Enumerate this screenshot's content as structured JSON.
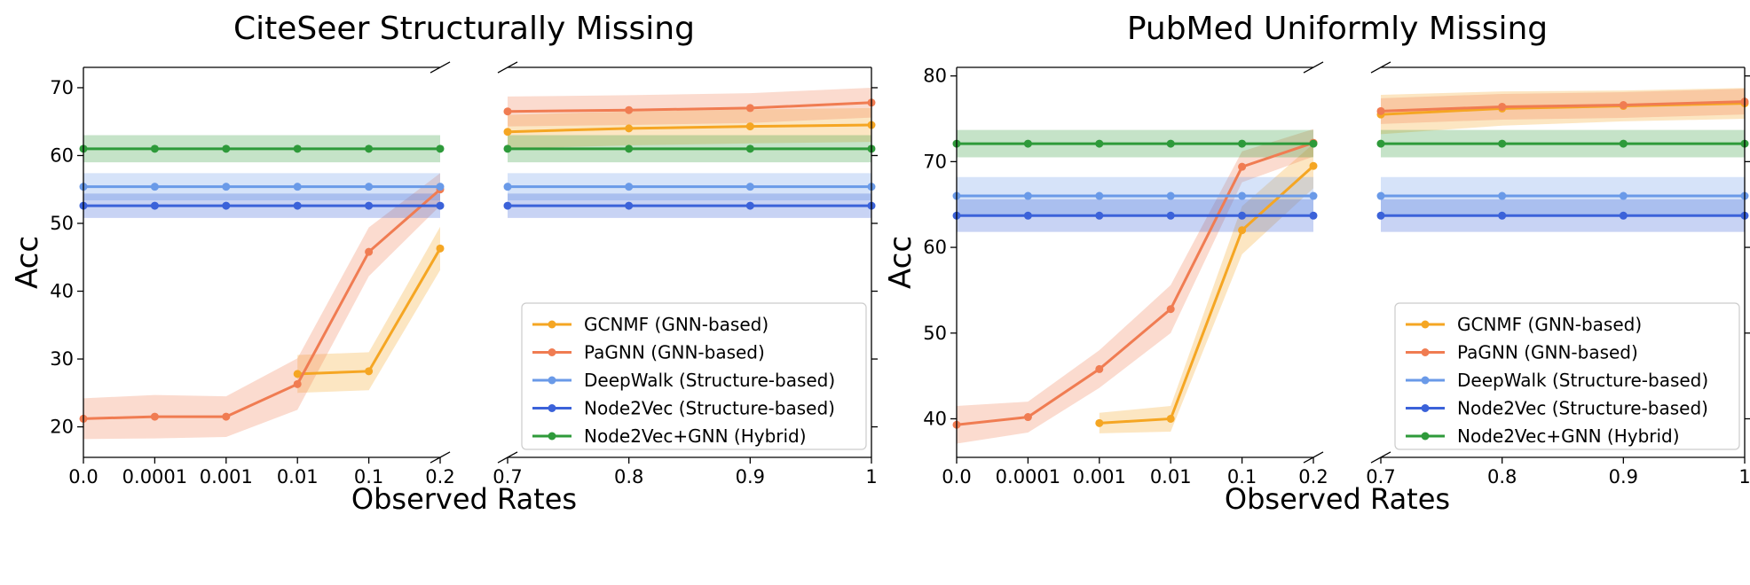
{
  "chart_data": [
    {
      "type": "line",
      "title": "CiteSeer Structurally Missing",
      "xlabel": "Observed Rates",
      "ylabel": "Acc",
      "ylim": [
        15.5,
        73
      ],
      "yticks": [
        20,
        30,
        40,
        50,
        60,
        70
      ],
      "x_left": [
        "0.0",
        "0.0001",
        "0.001",
        "0.01",
        "0.1",
        "0.2"
      ],
      "x_right": [
        "0.7",
        "0.8",
        "0.9",
        "1"
      ],
      "legend_position": "lower-right",
      "series": [
        {
          "name": "GCNMF (GNN-based)",
          "color": "#f5a623",
          "left": [
            null,
            null,
            null,
            27.8,
            28.2,
            46.3
          ],
          "left_err": [
            null,
            null,
            null,
            2.8,
            2.8,
            3.2
          ],
          "right": [
            63.5,
            64.0,
            64.3,
            64.5
          ],
          "right_err": [
            2.5,
            2.5,
            2.5,
            2.5
          ]
        },
        {
          "name": "PaGNN (GNN-based)",
          "color": "#f07c52",
          "left": [
            21.2,
            21.5,
            21.5,
            26.3,
            45.8,
            55.0
          ],
          "left_err": [
            3.0,
            3.2,
            3.0,
            3.8,
            3.6,
            2.4
          ],
          "right": [
            66.5,
            66.7,
            67.0,
            67.8
          ],
          "right_err": [
            2.2,
            2.2,
            2.2,
            2.2
          ]
        },
        {
          "name": "DeepWalk (Structure-based)",
          "color": "#6a9ae8",
          "left": [
            55.4,
            55.4,
            55.4,
            55.4,
            55.4,
            55.4
          ],
          "left_err": [
            2.0,
            2.0,
            2.0,
            2.0,
            2.0,
            2.0
          ],
          "right": [
            55.4,
            55.4,
            55.4,
            55.4
          ],
          "right_err": [
            2.0,
            2.0,
            2.0,
            2.0
          ]
        },
        {
          "name": "Node2Vec (Structure-based)",
          "color": "#3b62d9",
          "left": [
            52.6,
            52.6,
            52.6,
            52.6,
            52.6,
            52.6
          ],
          "left_err": [
            1.8,
            1.8,
            1.8,
            1.8,
            1.8,
            1.8
          ],
          "right": [
            52.6,
            52.6,
            52.6,
            52.6
          ],
          "right_err": [
            1.8,
            1.8,
            1.8,
            1.8
          ]
        },
        {
          "name": "Node2Vec+GNN (Hybrid)",
          "color": "#2e9a3a",
          "left": [
            61.0,
            61.0,
            61.0,
            61.0,
            61.0,
            61.0
          ],
          "left_err": [
            2.0,
            2.0,
            2.0,
            2.0,
            2.0,
            2.0
          ],
          "right": [
            61.0,
            61.0,
            61.0,
            61.0
          ],
          "right_err": [
            2.0,
            2.0,
            2.0,
            2.0
          ]
        }
      ]
    },
    {
      "type": "line",
      "title": "PubMed Uniformly Missing",
      "xlabel": "Observed Rates",
      "ylabel": "Acc",
      "ylim": [
        35.5,
        81
      ],
      "yticks": [
        40,
        50,
        60,
        70,
        80
      ],
      "x_left": [
        "0.0",
        "0.0001",
        "0.001",
        "0.01",
        "0.1",
        "0.2"
      ],
      "x_right": [
        "0.7",
        "0.8",
        "0.9",
        "1"
      ],
      "legend_position": "lower-right",
      "series": [
        {
          "name": "GCNMF (GNN-based)",
          "color": "#f5a623",
          "left": [
            null,
            null,
            39.5,
            40.0,
            62.0,
            69.5
          ],
          "left_err": [
            null,
            null,
            1.2,
            1.5,
            2.8,
            2.6
          ],
          "right": [
            75.5,
            76.2,
            76.5,
            76.8
          ],
          "right_err": [
            2.3,
            2.0,
            1.8,
            1.8
          ]
        },
        {
          "name": "PaGNN (GNN-based)",
          "color": "#f07c52",
          "left": [
            39.3,
            40.2,
            45.8,
            52.8,
            69.4,
            72.2
          ],
          "left_err": [
            2.2,
            1.8,
            2.2,
            2.8,
            1.8,
            1.6
          ],
          "right": [
            75.9,
            76.4,
            76.6,
            77.0
          ],
          "right_err": [
            1.5,
            1.5,
            1.5,
            1.5
          ]
        },
        {
          "name": "DeepWalk (Structure-based)",
          "color": "#6a9ae8",
          "left": [
            66.0,
            66.0,
            66.0,
            66.0,
            66.0,
            66.0
          ],
          "left_err": [
            2.2,
            2.2,
            2.2,
            2.2,
            2.2,
            2.2
          ],
          "right": [
            66.0,
            66.0,
            66.0,
            66.0
          ],
          "right_err": [
            2.2,
            2.2,
            2.2,
            2.2
          ]
        },
        {
          "name": "Node2Vec (Structure-based)",
          "color": "#3b62d9",
          "left": [
            63.7,
            63.7,
            63.7,
            63.7,
            63.7,
            63.7
          ],
          "left_err": [
            1.9,
            1.9,
            1.9,
            1.9,
            1.9,
            1.9
          ],
          "right": [
            63.7,
            63.7,
            63.7,
            63.7
          ],
          "right_err": [
            1.9,
            1.9,
            1.9,
            1.9
          ]
        },
        {
          "name": "Node2Vec+GNN (Hybrid)",
          "color": "#2e9a3a",
          "left": [
            72.1,
            72.1,
            72.1,
            72.1,
            72.1,
            72.1
          ],
          "left_err": [
            1.6,
            1.6,
            1.6,
            1.6,
            1.6,
            1.6
          ],
          "right": [
            72.1,
            72.1,
            72.1,
            72.1
          ],
          "right_err": [
            1.6,
            1.6,
            1.6,
            1.6
          ]
        }
      ]
    }
  ]
}
